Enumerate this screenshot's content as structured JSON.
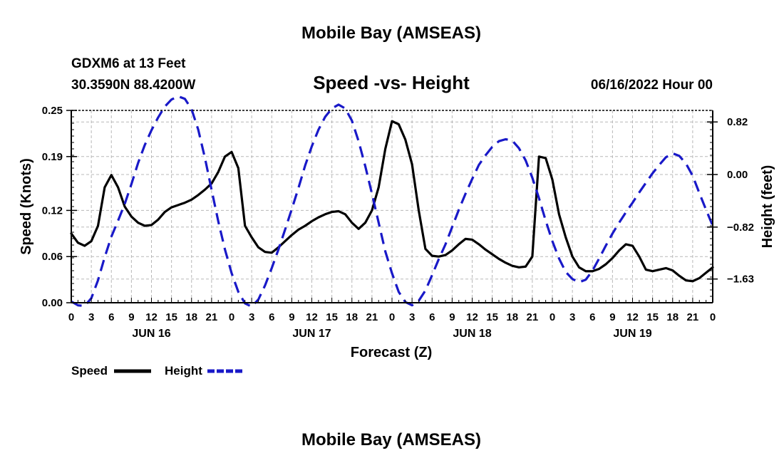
{
  "page": {
    "title": "Mobile Bay (AMSEAS)",
    "station": "GDXM6 at 13 Feet",
    "location": "30.3590N  88.4200W",
    "subtitle": "Speed -vs- Height",
    "timestamp": "06/16/2022 Hour 00",
    "footer_title": "Mobile Bay (AMSEAS)"
  },
  "chart_data": {
    "type": "line",
    "title": "Speed -vs- Height",
    "xlabel": "Forecast (Z)",
    "ylabel": "Speed (Knots)",
    "y2label": "Height (feet)",
    "x_range_hours": [
      0,
      96
    ],
    "ylim": [
      0,
      0.25
    ],
    "y2lim": [
      -2.0,
      1.0
    ],
    "grid": true,
    "legend_position": "bottom-left",
    "x_tick_labels": [
      "0",
      "3",
      "6",
      "9",
      "12",
      "15",
      "18",
      "21",
      "0",
      "3",
      "6",
      "9",
      "12",
      "15",
      "18",
      "21",
      "0",
      "3",
      "6",
      "9",
      "12",
      "15",
      "18",
      "21",
      "0",
      "3",
      "6",
      "9",
      "12",
      "15",
      "18",
      "21",
      "0"
    ],
    "date_labels": [
      {
        "hour": 12,
        "label": "JUN 16"
      },
      {
        "hour": 36,
        "label": "JUN 17"
      },
      {
        "hour": 60,
        "label": "JUN 18"
      },
      {
        "hour": 84,
        "label": "JUN 19"
      }
    ],
    "y_ticks": [
      0.0,
      0.06,
      0.12,
      0.19,
      0.25
    ],
    "y_tick_labels": [
      "0.00",
      "0.06",
      "0.12",
      "0.19",
      "0.25"
    ],
    "y2_ticks": [
      0.82,
      0.0,
      -0.82,
      -1.63
    ],
    "y2_tick_labels": [
      "0.82",
      "0.00",
      "−0.82",
      "−1.63"
    ],
    "series": [
      {
        "name": "Speed",
        "axis": "left",
        "color": "#000000",
        "dash": "solid",
        "points": [
          [
            0,
            0.09
          ],
          [
            1,
            0.078
          ],
          [
            2,
            0.074
          ],
          [
            3,
            0.08
          ],
          [
            4,
            0.1
          ],
          [
            5,
            0.15
          ],
          [
            6,
            0.166
          ],
          [
            7,
            0.15
          ],
          [
            8,
            0.125
          ],
          [
            9,
            0.112
          ],
          [
            10,
            0.104
          ],
          [
            11,
            0.1
          ],
          [
            12,
            0.101
          ],
          [
            13,
            0.108
          ],
          [
            14,
            0.118
          ],
          [
            15,
            0.124
          ],
          [
            16,
            0.127
          ],
          [
            17,
            0.13
          ],
          [
            18,
            0.134
          ],
          [
            19,
            0.14
          ],
          [
            20,
            0.147
          ],
          [
            21,
            0.155
          ],
          [
            22,
            0.17
          ],
          [
            23,
            0.19
          ],
          [
            24,
            0.196
          ],
          [
            25,
            0.175
          ],
          [
            26,
            0.1
          ],
          [
            27,
            0.085
          ],
          [
            28,
            0.072
          ],
          [
            29,
            0.066
          ],
          [
            30,
            0.065
          ],
          [
            31,
            0.072
          ],
          [
            32,
            0.08
          ],
          [
            33,
            0.088
          ],
          [
            34,
            0.095
          ],
          [
            35,
            0.1
          ],
          [
            36,
            0.106
          ],
          [
            37,
            0.111
          ],
          [
            38,
            0.115
          ],
          [
            39,
            0.118
          ],
          [
            40,
            0.119
          ],
          [
            41,
            0.115
          ],
          [
            42,
            0.104
          ],
          [
            43,
            0.096
          ],
          [
            44,
            0.104
          ],
          [
            45,
            0.12
          ],
          [
            46,
            0.15
          ],
          [
            47,
            0.2
          ],
          [
            48,
            0.236
          ],
          [
            49,
            0.232
          ],
          [
            50,
            0.212
          ],
          [
            51,
            0.18
          ],
          [
            52,
            0.12
          ],
          [
            53,
            0.07
          ],
          [
            54,
            0.061
          ],
          [
            55,
            0.06
          ],
          [
            56,
            0.062
          ],
          [
            57,
            0.068
          ],
          [
            58,
            0.076
          ],
          [
            59,
            0.083
          ],
          [
            60,
            0.082
          ],
          [
            61,
            0.076
          ],
          [
            62,
            0.069
          ],
          [
            63,
            0.063
          ],
          [
            64,
            0.057
          ],
          [
            65,
            0.052
          ],
          [
            66,
            0.048
          ],
          [
            67,
            0.046
          ],
          [
            68,
            0.047
          ],
          [
            69,
            0.06
          ],
          [
            70,
            0.19
          ],
          [
            71,
            0.188
          ],
          [
            72,
            0.16
          ],
          [
            73,
            0.115
          ],
          [
            74,
            0.085
          ],
          [
            75,
            0.06
          ],
          [
            76,
            0.046
          ],
          [
            77,
            0.041
          ],
          [
            78,
            0.041
          ],
          [
            79,
            0.044
          ],
          [
            80,
            0.05
          ],
          [
            81,
            0.058
          ],
          [
            82,
            0.068
          ],
          [
            83,
            0.076
          ],
          [
            84,
            0.074
          ],
          [
            85,
            0.06
          ],
          [
            86,
            0.043
          ],
          [
            87,
            0.041
          ],
          [
            88,
            0.043
          ],
          [
            89,
            0.045
          ],
          [
            90,
            0.042
          ],
          [
            91,
            0.035
          ],
          [
            92,
            0.029
          ],
          [
            93,
            0.028
          ],
          [
            94,
            0.032
          ],
          [
            95,
            0.039
          ],
          [
            96,
            0.046
          ]
        ]
      },
      {
        "name": "Height",
        "axis": "right",
        "color": "#1919c8",
        "dash": "dashed",
        "points": [
          [
            0,
            -1.98
          ],
          [
            1,
            -2.04
          ],
          [
            2,
            -2.05
          ],
          [
            3,
            -1.93
          ],
          [
            4,
            -1.65
          ],
          [
            5,
            -1.29
          ],
          [
            6,
            -0.97
          ],
          [
            7,
            -0.72
          ],
          [
            8,
            -0.46
          ],
          [
            9,
            -0.15
          ],
          [
            10,
            0.18
          ],
          [
            11,
            0.46
          ],
          [
            12,
            0.69
          ],
          [
            13,
            0.89
          ],
          [
            14,
            1.06
          ],
          [
            15,
            1.17
          ],
          [
            16,
            1.22
          ],
          [
            17,
            1.18
          ],
          [
            18,
            1.02
          ],
          [
            19,
            0.7
          ],
          [
            20,
            0.26
          ],
          [
            21,
            -0.24
          ],
          [
            22,
            -0.73
          ],
          [
            23,
            -1.17
          ],
          [
            24,
            -1.54
          ],
          [
            25,
            -1.83
          ],
          [
            26,
            -2.01
          ],
          [
            27,
            -2.06
          ],
          [
            28,
            -1.95
          ],
          [
            29,
            -1.73
          ],
          [
            30,
            -1.46
          ],
          [
            31,
            -1.17
          ],
          [
            32,
            -0.86
          ],
          [
            33,
            -0.54
          ],
          [
            34,
            -0.21
          ],
          [
            35,
            0.14
          ],
          [
            36,
            0.44
          ],
          [
            37,
            0.7
          ],
          [
            38,
            0.9
          ],
          [
            39,
            1.03
          ],
          [
            40,
            1.09
          ],
          [
            41,
            1.03
          ],
          [
            42,
            0.84
          ],
          [
            43,
            0.52
          ],
          [
            44,
            0.13
          ],
          [
            45,
            -0.3
          ],
          [
            46,
            -0.75
          ],
          [
            47,
            -1.2
          ],
          [
            48,
            -1.54
          ],
          [
            49,
            -1.83
          ],
          [
            50,
            -1.99
          ],
          [
            51,
            -2.04
          ],
          [
            52,
            -1.97
          ],
          [
            53,
            -1.81
          ],
          [
            54,
            -1.57
          ],
          [
            55,
            -1.32
          ],
          [
            56,
            -1.09
          ],
          [
            57,
            -0.82
          ],
          [
            58,
            -0.55
          ],
          [
            59,
            -0.3
          ],
          [
            60,
            -0.07
          ],
          [
            61,
            0.15
          ],
          [
            62,
            0.3
          ],
          [
            63,
            0.43
          ],
          [
            64,
            0.52
          ],
          [
            65,
            0.55
          ],
          [
            66,
            0.53
          ],
          [
            67,
            0.41
          ],
          [
            68,
            0.22
          ],
          [
            69,
            -0.05
          ],
          [
            70,
            -0.37
          ],
          [
            71,
            -0.72
          ],
          [
            72,
            -1.04
          ],
          [
            73,
            -1.31
          ],
          [
            74,
            -1.52
          ],
          [
            75,
            -1.63
          ],
          [
            76,
            -1.68
          ],
          [
            77,
            -1.64
          ],
          [
            78,
            -1.5
          ],
          [
            79,
            -1.31
          ],
          [
            80,
            -1.11
          ],
          [
            81,
            -0.92
          ],
          [
            82,
            -0.75
          ],
          [
            83,
            -0.59
          ],
          [
            84,
            -0.44
          ],
          [
            85,
            -0.28
          ],
          [
            86,
            -0.13
          ],
          [
            87,
            0.02
          ],
          [
            88,
            0.15
          ],
          [
            89,
            0.27
          ],
          [
            90,
            0.33
          ],
          [
            91,
            0.29
          ],
          [
            92,
            0.17
          ],
          [
            93,
            -0.02
          ],
          [
            94,
            -0.29
          ],
          [
            95,
            -0.55
          ],
          [
            96,
            -0.8
          ]
        ]
      }
    ]
  }
}
